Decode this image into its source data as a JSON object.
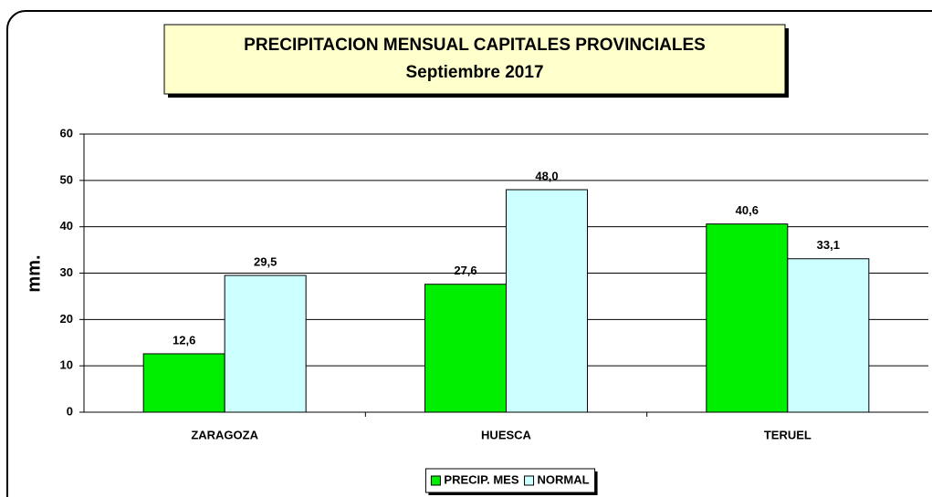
{
  "chart_data": {
    "type": "bar",
    "title": "PRECIPITACION MENSUAL CAPITALES PROVINCIALES",
    "subtitle": "Septiembre 2017",
    "y_label": "mm.",
    "categories": [
      "ZARAGOZA",
      "HUESCA",
      "TERUEL"
    ],
    "series": [
      {
        "name": "PRECIP. MES",
        "color": "#00ee00",
        "values": [
          12.6,
          27.6,
          40.6
        ],
        "value_labels": [
          "12,6",
          "27,6",
          "40,6"
        ]
      },
      {
        "name": "NORMAL",
        "color": "#ccffff",
        "values": [
          29.5,
          48.0,
          33.1
        ],
        "value_labels": [
          "29,5",
          "48,0",
          "33,1"
        ]
      }
    ],
    "ylim": [
      0,
      60
    ],
    "yticks": [
      0,
      10,
      20,
      30,
      40,
      50,
      60
    ],
    "grid": true,
    "legend": "bottom"
  }
}
